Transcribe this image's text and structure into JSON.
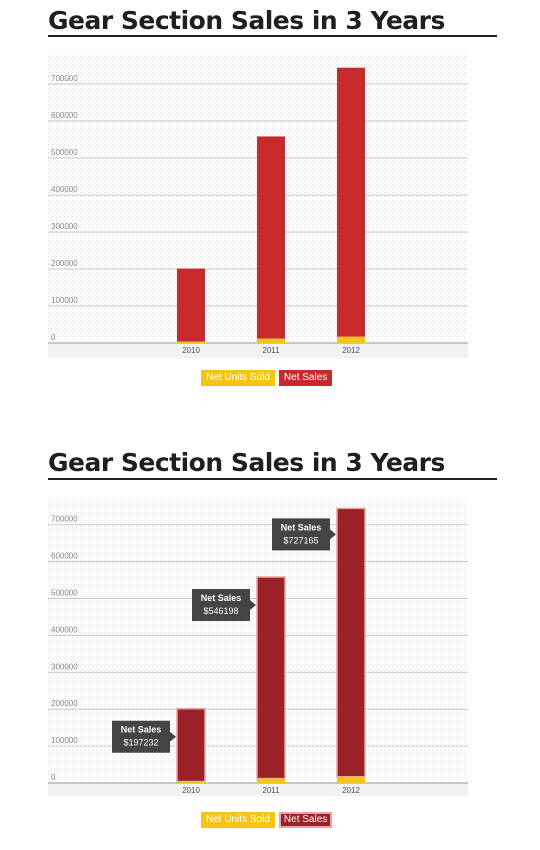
{
  "colors": {
    "units": "#f5c515",
    "sales": "#c8292d",
    "sales_hover": "#9b2226",
    "tooltip_bg": "#444444"
  },
  "charts": [
    {
      "title": "Gear Section Sales in 3 Years",
      "legend": {
        "units": "Net Units Sold",
        "sales": "Net Sales"
      },
      "tooltips_visible": false
    },
    {
      "title": "Gear Section Sales in 3 Years",
      "legend": {
        "units": "Net Units Sold",
        "sales": "Net Sales"
      },
      "tooltips_visible": true,
      "tooltip_label": "Net Sales",
      "tooltips": [
        "$197232",
        "$546198",
        "$727165"
      ]
    }
  ],
  "chart_data": [
    {
      "type": "bar",
      "title": "Gear Section Sales in 3 Years",
      "categories": [
        "2010",
        "2011",
        "2012"
      ],
      "series": [
        {
          "name": "Net Units Sold",
          "values": [
            4000,
            12000,
            17000
          ]
        },
        {
          "name": "Net Sales",
          "values": [
            197232,
            546198,
            727165
          ]
        }
      ],
      "stacked": true,
      "ylim": [
        0,
        800000
      ],
      "yticks": [
        0,
        100000,
        200000,
        300000,
        400000,
        500000,
        600000,
        700000
      ],
      "grid": true,
      "legend": "bottom-center"
    },
    {
      "type": "bar",
      "title": "Gear Section Sales in 3 Years",
      "categories": [
        "2010",
        "2011",
        "2012"
      ],
      "series": [
        {
          "name": "Net Units Sold",
          "values": [
            4000,
            12000,
            17000
          ]
        },
        {
          "name": "Net Sales",
          "values": [
            197232,
            546198,
            727165
          ]
        }
      ],
      "stacked": true,
      "ylim": [
        0,
        800000
      ],
      "yticks": [
        0,
        100000,
        200000,
        300000,
        400000,
        500000,
        600000,
        700000
      ],
      "grid": true,
      "legend": "bottom-center"
    }
  ]
}
